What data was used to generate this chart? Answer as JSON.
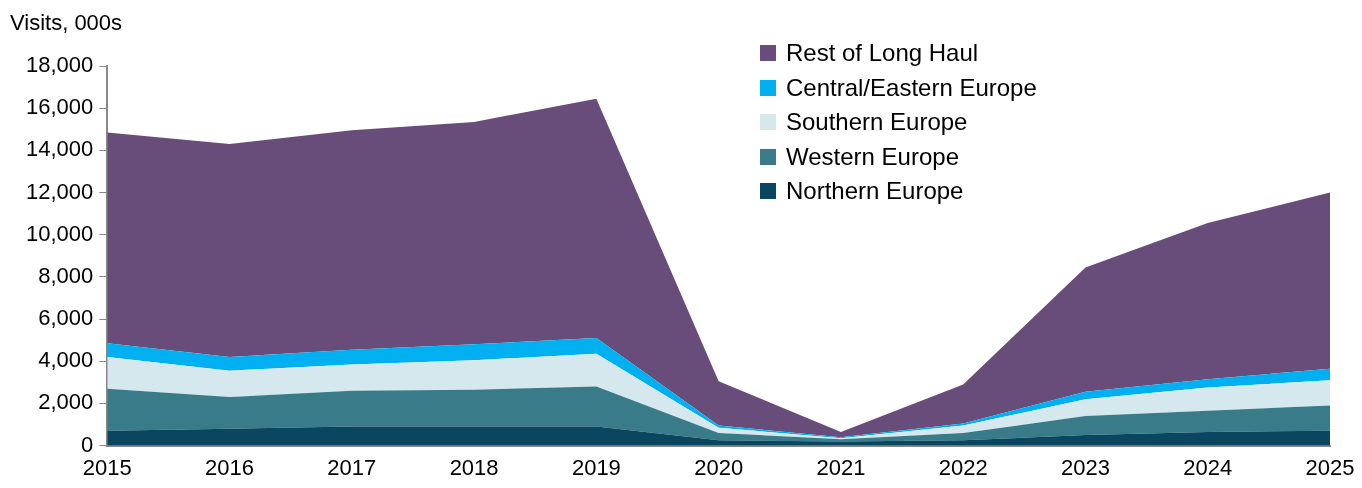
{
  "chart_data": {
    "type": "area",
    "ylabel": "Visits, 000s",
    "stacked": true,
    "categories": [
      "2015",
      "2016",
      "2017",
      "2018",
      "2019",
      "2020",
      "2021",
      "2022",
      "2023",
      "2024",
      "2025"
    ],
    "series": [
      {
        "name": "Northern Europe",
        "color": "#0b4660",
        "values": [
          700,
          800,
          900,
          900,
          900,
          250,
          200,
          250,
          500,
          650,
          700
        ]
      },
      {
        "name": "Western Europe",
        "color": "#3a7b8a",
        "values": [
          2000,
          1500,
          1700,
          1750,
          1900,
          350,
          100,
          350,
          900,
          1000,
          1200
        ]
      },
      {
        "name": "Southern Europe",
        "color": "#d4e8ee",
        "values": [
          1500,
          1250,
          1250,
          1400,
          1550,
          250,
          50,
          350,
          800,
          1100,
          1200
        ]
      },
      {
        "name": "Central/Eastern Europe",
        "color": "#00b0f0",
        "values": [
          650,
          650,
          700,
          750,
          750,
          100,
          50,
          100,
          350,
          400,
          550
        ]
      },
      {
        "name": "Rest of Long Haul",
        "color": "#684d7a",
        "values": [
          10000,
          10100,
          10400,
          10550,
          11350,
          2100,
          250,
          1850,
          5900,
          7400,
          8350
        ]
      }
    ],
    "ylim": [
      0,
      18000
    ],
    "yticks": [
      0,
      {
        "value": 2000,
        "label": "2,000"
      },
      {
        "value": 4000,
        "label": "4,000"
      },
      {
        "value": 6000,
        "label": "6,000"
      },
      {
        "value": 8000,
        "label": "8,000"
      },
      {
        "value": 10000,
        "label": "10,000"
      },
      {
        "value": 12000,
        "label": "12,000"
      },
      {
        "value": 14000,
        "label": "14,000"
      },
      {
        "value": 16000,
        "label": "16,000"
      },
      {
        "value": 18000,
        "label": "18,000"
      }
    ],
    "grid": false,
    "legend": "top right"
  }
}
